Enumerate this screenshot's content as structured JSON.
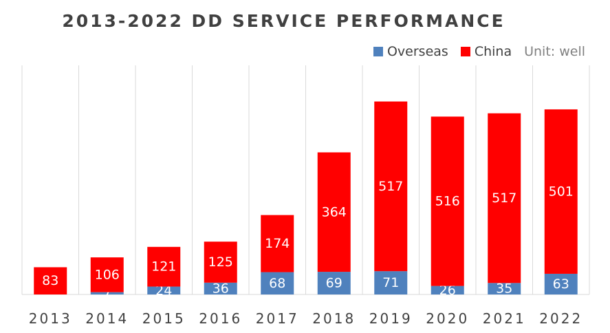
{
  "chart_data": {
    "type": "bar",
    "stacked": true,
    "title": "2013-2022 DD SERVICE PERFORMANCE",
    "unit": "Unit: well",
    "categories": [
      "2013",
      "2014",
      "2015",
      "2016",
      "2017",
      "2018",
      "2019",
      "2020",
      "2021",
      "2022"
    ],
    "series": [
      {
        "name": "Overseas",
        "color": "#4f81bd",
        "values": [
          0,
          7,
          24,
          36,
          68,
          69,
          71,
          26,
          35,
          63
        ],
        "labels": [
          "",
          "7",
          "24",
          "36",
          "68",
          "69",
          "71",
          "26",
          "35",
          "63"
        ]
      },
      {
        "name": "China",
        "color": "#ff0000",
        "values": [
          83,
          106,
          121,
          125,
          174,
          364,
          517,
          516,
          517,
          501
        ],
        "labels": [
          "83",
          "106",
          "121",
          "125",
          "174",
          "364",
          "517",
          "516",
          "517",
          "501"
        ]
      }
    ],
    "ylim": [
      0,
      620
    ],
    "grid": "vertical",
    "legend_position": "top-right"
  }
}
